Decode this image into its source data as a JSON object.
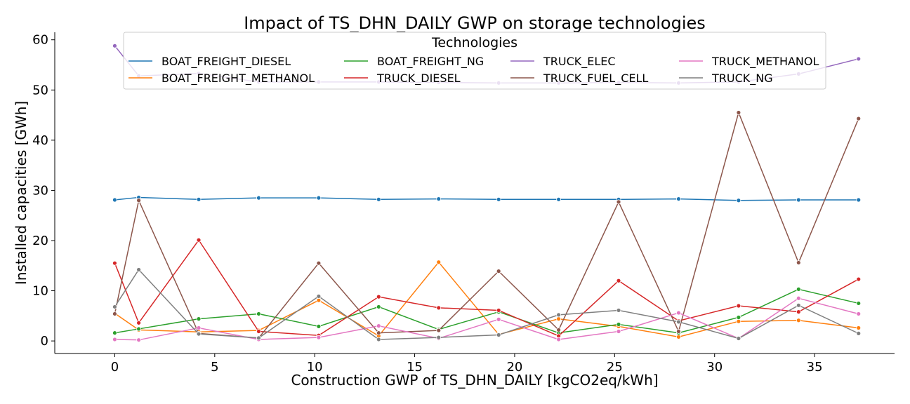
{
  "chart_data": {
    "type": "line",
    "title": "Impact of TS_DHN_DAILY GWP on storage technologies",
    "xlabel": "Construction GWP of TS_DHN_DAILY [kgCO2eq/kWh]",
    "ylabel": "Installed capacities [GWh]",
    "xlim": [
      -3.0,
      39.0
    ],
    "ylim": [
      -2.5,
      61.5
    ],
    "xticks": [
      0,
      5,
      10,
      15,
      20,
      25,
      30,
      35
    ],
    "yticks": [
      0,
      10,
      20,
      30,
      40,
      50,
      60
    ],
    "legend_title": "Technologies",
    "legend_position": "top-center",
    "grid": false,
    "x": [
      0,
      1.2,
      4.2,
      7.2,
      10.2,
      13.2,
      16.2,
      19.2,
      22.2,
      25.2,
      28.2,
      31.2,
      34.2,
      37.2
    ],
    "series": [
      {
        "name": "BOAT_FREIGHT_DIESEL",
        "color": "#1f77b4",
        "values": [
          28.1,
          28.6,
          28.2,
          28.5,
          28.5,
          28.2,
          28.3,
          28.2,
          28.2,
          28.2,
          28.3,
          28.0,
          28.1,
          28.1
        ]
      },
      {
        "name": "BOAT_FREIGHT_METHANOL",
        "color": "#ff7f0e",
        "values": [
          5.5,
          2.2,
          1.8,
          2.1,
          8.1,
          1.0,
          15.7,
          1.3,
          4.4,
          2.9,
          0.8,
          3.9,
          4.1,
          2.6
        ]
      },
      {
        "name": "BOAT_FREIGHT_NG",
        "color": "#2ca02c",
        "values": [
          1.6,
          2.4,
          4.4,
          5.4,
          2.9,
          6.8,
          2.3,
          5.8,
          1.6,
          3.3,
          1.6,
          4.7,
          10.3,
          7.5
        ]
      },
      {
        "name": "TRUCK_DIESEL",
        "color": "#d62728",
        "values": [
          15.5,
          3.6,
          20.1,
          1.9,
          1.1,
          8.8,
          6.6,
          6.1,
          1.0,
          12.0,
          4.0,
          7.0,
          5.8,
          12.3
        ]
      },
      {
        "name": "TRUCK_ELEC",
        "color": "#9467bd",
        "values": [
          58.8,
          52.8,
          53.3,
          51.6,
          51.6,
          51.6,
          51.5,
          51.4,
          51.4,
          51.5,
          51.4,
          51.6,
          53.2,
          56.2
        ]
      },
      {
        "name": "TRUCK_FUEL_CELL",
        "color": "#8c564b",
        "values": [
          5.4,
          28.0,
          1.5,
          0.6,
          15.5,
          1.6,
          2.1,
          13.9,
          2.2,
          27.7,
          1.9,
          45.5,
          15.6,
          44.3
        ]
      },
      {
        "name": "TRUCK_METHANOL",
        "color": "#e377c2",
        "values": [
          0.3,
          0.2,
          2.6,
          0.3,
          0.7,
          3.0,
          0.5,
          4.3,
          0.3,
          1.9,
          5.6,
          0.5,
          8.5,
          5.4
        ]
      },
      {
        "name": "TRUCK_NG",
        "color": "#7f7f7f",
        "values": [
          6.8,
          14.2,
          1.4,
          0.6,
          8.9,
          0.3,
          0.7,
          1.2,
          5.2,
          6.1,
          3.8,
          0.5,
          7.1,
          1.5
        ]
      }
    ]
  }
}
